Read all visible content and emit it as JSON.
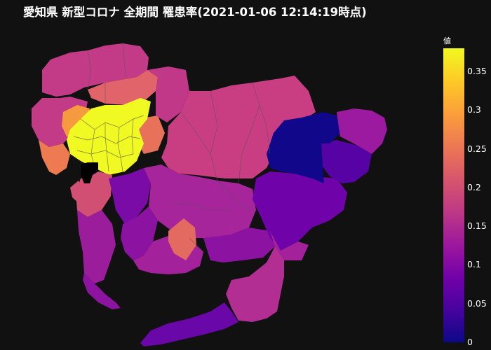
{
  "title": "愛知県 新型コロナ 全期間 罹患率(2021-01-06 12:14:19時点)",
  "colorbar": {
    "title": "値",
    "ticks": [
      "0.35",
      "0.3",
      "0.25",
      "0.2",
      "0.15",
      "0.1",
      "0.05",
      "0"
    ],
    "tick_values": [
      0.35,
      0.3,
      0.25,
      0.2,
      0.15,
      0.1,
      0.05,
      0
    ],
    "range": [
      0,
      0.38
    ],
    "colorscale": [
      "#0d0887",
      "#46039f",
      "#7201a8",
      "#9c179e",
      "#bd3786",
      "#d8576b",
      "#ed7953",
      "#fb9f3a",
      "#fdca26",
      "#f0f921"
    ]
  },
  "colors": {
    "background": "#111111",
    "border": "#444444"
  },
  "map_regions": [
    {
      "id": "nagoya-core",
      "value": 0.38
    },
    {
      "id": "northwest-owari",
      "value": 0.17
    },
    {
      "id": "north-owari",
      "value": 0.18
    },
    {
      "id": "west-owari",
      "value": 0.25
    },
    {
      "id": "coastal-west",
      "value": 0.24
    },
    {
      "id": "chita-north",
      "value": 0.18
    },
    {
      "id": "chita-south",
      "value": 0.13
    },
    {
      "id": "toyota-area",
      "value": 0.17
    },
    {
      "id": "okazaki-area",
      "value": 0.15
    },
    {
      "id": "nishio-area",
      "value": 0.14
    },
    {
      "id": "hekinan-area",
      "value": 0.12
    },
    {
      "id": "gamagori-area",
      "value": 0.12
    },
    {
      "id": "toyokawa-area",
      "value": 0.11
    },
    {
      "id": "toyohashi-area",
      "value": 0.14
    },
    {
      "id": "atsumi-peninsula",
      "value": 0.08
    },
    {
      "id": "shinshiro-area",
      "value": 0.06
    },
    {
      "id": "shitara-area",
      "value": 0.0
    },
    {
      "id": "toei-area",
      "value": 0.03
    },
    {
      "id": "toyone-area",
      "value": 0.11
    },
    {
      "id": "northeast-seto",
      "value": 0.15
    },
    {
      "id": "kasugai-area",
      "value": 0.23
    },
    {
      "id": "central-small",
      "value": 0.21
    },
    {
      "id": "kariya-area",
      "value": 0.1
    }
  ]
}
